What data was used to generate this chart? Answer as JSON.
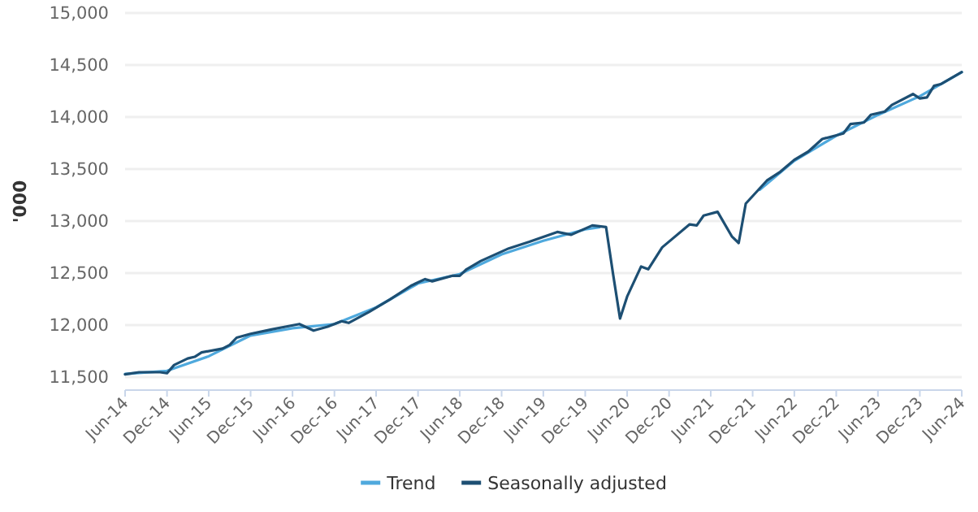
{
  "chart_data": {
    "type": "line",
    "ylabel": "'000",
    "ylim": [
      11375,
      15000
    ],
    "yticks": [
      {
        "value": 11500,
        "label": "11,500"
      },
      {
        "value": 12000,
        "label": "12,000"
      },
      {
        "value": 12500,
        "label": "12,500"
      },
      {
        "value": 13000,
        "label": "13,000"
      },
      {
        "value": 13500,
        "label": "13,500"
      },
      {
        "value": 14000,
        "label": "14,000"
      },
      {
        "value": 14500,
        "label": "14,500"
      },
      {
        "value": 15000,
        "label": "15,000"
      }
    ],
    "xlim": [
      "2014-06",
      "2024-06"
    ],
    "xticks": [
      {
        "value": "2014-06",
        "label": "Jun-14"
      },
      {
        "value": "2014-12",
        "label": "Dec-14"
      },
      {
        "value": "2015-06",
        "label": "Jun-15"
      },
      {
        "value": "2015-12",
        "label": "Dec-15"
      },
      {
        "value": "2016-06",
        "label": "Jun-16"
      },
      {
        "value": "2016-12",
        "label": "Dec-16"
      },
      {
        "value": "2017-06",
        "label": "Jun-17"
      },
      {
        "value": "2017-12",
        "label": "Dec-17"
      },
      {
        "value": "2018-06",
        "label": "Jun-18"
      },
      {
        "value": "2018-12",
        "label": "Dec-18"
      },
      {
        "value": "2019-06",
        "label": "Jun-19"
      },
      {
        "value": "2019-12",
        "label": "Dec-19"
      },
      {
        "value": "2020-06",
        "label": "Jun-20"
      },
      {
        "value": "2020-12",
        "label": "Dec-20"
      },
      {
        "value": "2021-06",
        "label": "Jun-21"
      },
      {
        "value": "2021-12",
        "label": "Dec-21"
      },
      {
        "value": "2022-06",
        "label": "Jun-22"
      },
      {
        "value": "2022-12",
        "label": "Dec-22"
      },
      {
        "value": "2023-06",
        "label": "Jun-23"
      },
      {
        "value": "2023-12",
        "label": "Dec-23"
      },
      {
        "value": "2024-06",
        "label": "Jun-24"
      }
    ],
    "grid": "y",
    "legend": "bottom",
    "marker": "none",
    "line_style": "solid",
    "series": [
      {
        "name": "Trend",
        "color": "#4fa9dd",
        "x": [
          "2014-06",
          "2014-12",
          "2015-06",
          "2015-12",
          "2016-06",
          "2016-12",
          "2017-06",
          "2017-12",
          "2018-06",
          "2018-12",
          "2019-06",
          "2019-12",
          "2020-02",
          "2020-03",
          "2022-01",
          "2022-06",
          "2022-12",
          "2023-06",
          "2023-12",
          "2024-06"
        ],
        "values": [
          11530,
          11560,
          11700,
          11900,
          11970,
          12010,
          12170,
          12400,
          12490,
          12680,
          12810,
          12920,
          12940,
          null,
          13300,
          13580,
          13820,
          14020,
          14200,
          14430
        ]
      },
      {
        "name": "Seasonally adjusted",
        "color": "#1d4f73",
        "x": [
          "2014-06",
          "2014-08",
          "2014-11",
          "2014-12",
          "2015-01",
          "2015-03",
          "2015-04",
          "2015-05",
          "2015-08",
          "2015-09",
          "2015-10",
          "2015-12",
          "2016-03",
          "2016-05",
          "2016-07",
          "2016-09",
          "2016-11",
          "2017-01",
          "2017-02",
          "2017-05",
          "2017-08",
          "2017-11",
          "2018-01",
          "2018-02",
          "2018-05",
          "2018-06",
          "2018-07",
          "2018-09",
          "2019-01",
          "2019-04",
          "2019-08",
          "2019-10",
          "2020-01",
          "2020-03",
          "2020-04",
          "2020-05",
          "2020-06",
          "2020-08",
          "2020-09",
          "2020-11",
          "2021-03",
          "2021-04",
          "2021-05",
          "2021-07",
          "2021-09",
          "2021-10",
          "2021-11",
          "2022-02",
          "2022-04",
          "2022-06",
          "2022-08",
          "2022-10",
          "2023-01",
          "2023-02",
          "2023-04",
          "2023-05",
          "2023-07",
          "2023-08",
          "2023-11",
          "2023-12",
          "2024-01",
          "2024-02",
          "2024-03",
          "2024-06"
        ],
        "values": [
          11526,
          11547,
          11547,
          11537,
          11616,
          11679,
          11695,
          11737,
          11774,
          11810,
          11879,
          11916,
          11958,
          11984,
          12010,
          11947,
          11984,
          12037,
          12021,
          12126,
          12247,
          12379,
          12442,
          12421,
          12474,
          12474,
          12537,
          12616,
          12737,
          12800,
          12895,
          12868,
          12958,
          12942,
          12484,
          12063,
          12274,
          12563,
          12537,
          12747,
          12968,
          12958,
          13053,
          13089,
          12853,
          12789,
          13168,
          13389,
          13474,
          13589,
          13668,
          13789,
          13842,
          13932,
          13947,
          14021,
          14053,
          14116,
          14221,
          14179,
          14189,
          14300,
          14316,
          14432
        ]
      }
    ]
  }
}
